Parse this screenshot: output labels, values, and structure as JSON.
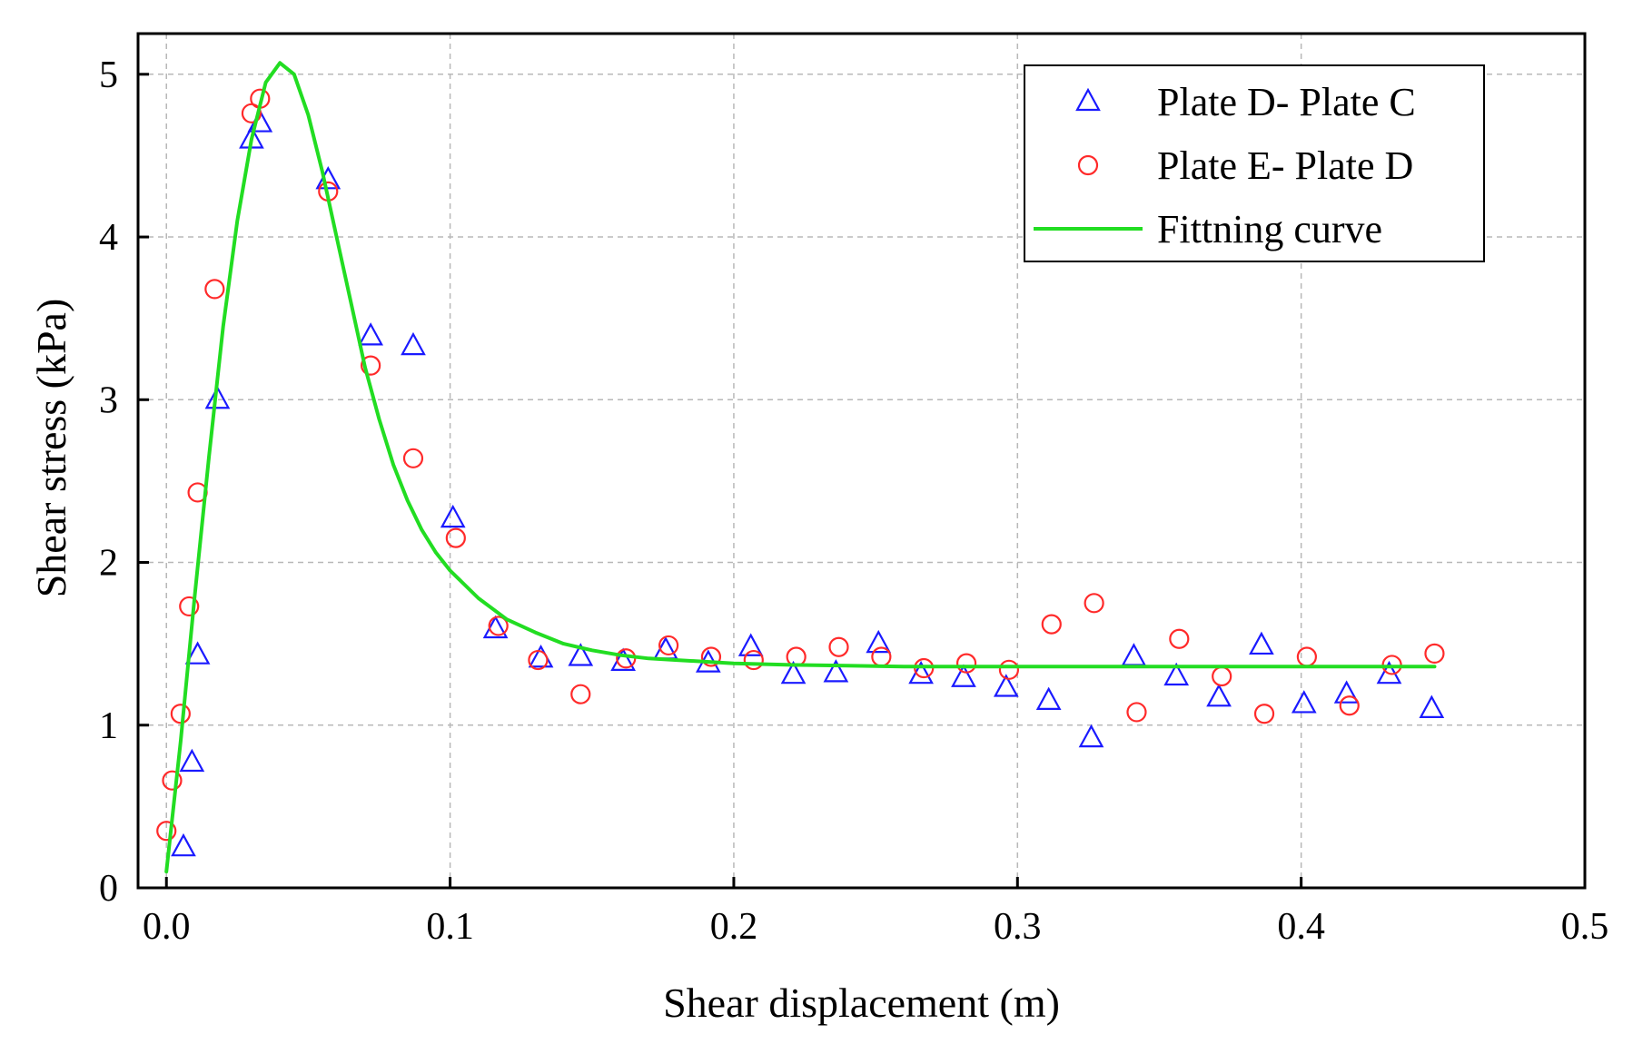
{
  "chart_data": {
    "type": "scatter",
    "title": "",
    "xlabel": "Shear displacement (m)",
    "ylabel": "Shear stress (kPa)",
    "xlim": [
      -0.01,
      0.5
    ],
    "ylim": [
      0,
      5.25
    ],
    "xticks": [
      0.0,
      0.1,
      0.2,
      0.3,
      0.4,
      0.5
    ],
    "xtick_labels": [
      "0.0",
      "0.1",
      "0.2",
      "0.3",
      "0.4",
      "0.5"
    ],
    "yticks": [
      0,
      1,
      2,
      3,
      4,
      5
    ],
    "ytick_labels": [
      "0",
      "1",
      "2",
      "3",
      "4",
      "5"
    ],
    "grid": true,
    "legend_position": "top-right",
    "series": [
      {
        "name": "Plate D- Plate C",
        "marker": "triangle",
        "color": "#1a1aff",
        "x": [
          0.006,
          0.009,
          0.011,
          0.018,
          0.03,
          0.033,
          0.057,
          0.072,
          0.087,
          0.101,
          0.116,
          0.132,
          0.146,
          0.161,
          0.176,
          0.191,
          0.206,
          0.221,
          0.236,
          0.251,
          0.266,
          0.281,
          0.296,
          0.311,
          0.326,
          0.341,
          0.356,
          0.371,
          0.386,
          0.401,
          0.416,
          0.431,
          0.446
        ],
        "y": [
          0.25,
          0.77,
          1.43,
          3.0,
          4.6,
          4.7,
          4.35,
          3.39,
          3.33,
          2.27,
          1.59,
          1.41,
          1.42,
          1.39,
          1.46,
          1.38,
          1.48,
          1.31,
          1.32,
          1.5,
          1.31,
          1.29,
          1.23,
          1.15,
          0.92,
          1.42,
          1.3,
          1.17,
          1.49,
          1.13,
          1.19,
          1.31,
          1.1
        ]
      },
      {
        "name": "Plate E- Plate D",
        "marker": "circle",
        "color": "#ff2a2a",
        "x": [
          0.0,
          0.002,
          0.005,
          0.008,
          0.011,
          0.017,
          0.03,
          0.033,
          0.057,
          0.072,
          0.087,
          0.102,
          0.117,
          0.131,
          0.146,
          0.162,
          0.177,
          0.192,
          0.207,
          0.222,
          0.237,
          0.252,
          0.267,
          0.282,
          0.297,
          0.312,
          0.327,
          0.342,
          0.357,
          0.372,
          0.387,
          0.402,
          0.417,
          0.432,
          0.447
        ],
        "y": [
          0.35,
          0.66,
          1.07,
          1.73,
          2.43,
          3.68,
          4.76,
          4.85,
          4.28,
          3.21,
          2.64,
          2.15,
          1.61,
          1.4,
          1.19,
          1.41,
          1.49,
          1.42,
          1.4,
          1.42,
          1.48,
          1.42,
          1.35,
          1.38,
          1.34,
          1.62,
          1.75,
          1.08,
          1.53,
          1.3,
          1.07,
          1.42,
          1.12,
          1.37,
          1.44
        ]
      },
      {
        "name": "Fittning curve",
        "marker": "line",
        "color": "#22dd22",
        "x": [
          0.0,
          0.005,
          0.01,
          0.015,
          0.02,
          0.025,
          0.03,
          0.035,
          0.04,
          0.045,
          0.05,
          0.055,
          0.06,
          0.065,
          0.07,
          0.075,
          0.08,
          0.085,
          0.09,
          0.095,
          0.1,
          0.11,
          0.12,
          0.13,
          0.14,
          0.15,
          0.16,
          0.17,
          0.18,
          0.19,
          0.2,
          0.22,
          0.24,
          0.26,
          0.28,
          0.3,
          0.33,
          0.36,
          0.39,
          0.42,
          0.447
        ],
        "y": [
          0.1,
          0.9,
          1.8,
          2.65,
          3.45,
          4.1,
          4.6,
          4.95,
          5.07,
          5.0,
          4.75,
          4.4,
          4.0,
          3.6,
          3.2,
          2.88,
          2.6,
          2.38,
          2.2,
          2.06,
          1.95,
          1.78,
          1.65,
          1.57,
          1.5,
          1.46,
          1.43,
          1.41,
          1.4,
          1.39,
          1.38,
          1.37,
          1.365,
          1.36,
          1.36,
          1.36,
          1.36,
          1.36,
          1.36,
          1.36,
          1.36
        ]
      }
    ]
  }
}
